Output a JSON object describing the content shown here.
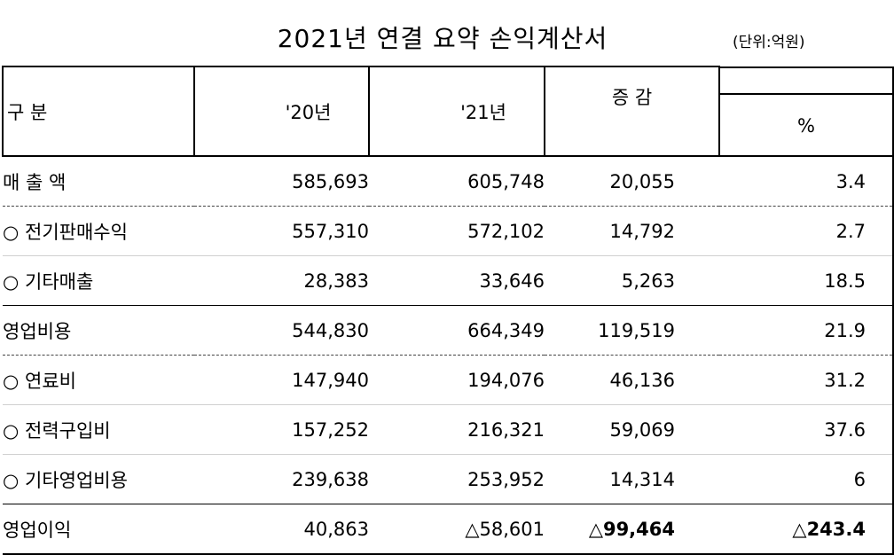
{
  "title": "2021년 연결 요약 손익계산서",
  "unit": "(단위:억원)",
  "header": {
    "label": "구    분",
    "col_2020": "'20년",
    "col_2021": "'21년",
    "col_diff": "증 감",
    "col_pct": "%"
  },
  "rows": [
    {
      "label": "매 출 액",
      "y2020": "585,693",
      "y2021": "605,748",
      "diff": "20,055",
      "pct": "3.4"
    },
    {
      "label": "○ 전기판매수익",
      "y2020": "557,310",
      "y2021": "572,102",
      "diff": "14,792",
      "pct": "2.7"
    },
    {
      "label": "○ 기타매출",
      "y2020": "28,383",
      "y2021": "33,646",
      "diff": "5,263",
      "pct": "18.5"
    },
    {
      "label": "영업비용",
      "y2020": "544,830",
      "y2021": "664,349",
      "diff": "119,519",
      "pct": "21.9"
    },
    {
      "label": "○ 연료비",
      "y2020": "147,940",
      "y2021": "194,076",
      "diff": "46,136",
      "pct": "31.2"
    },
    {
      "label": "○ 전력구입비",
      "y2020": "157,252",
      "y2021": "216,321",
      "diff": "59,069",
      "pct": "37.6"
    },
    {
      "label": "○ 기타영업비용",
      "y2020": "239,638",
      "y2021": "253,952",
      "diff": "14,314",
      "pct": "6"
    },
    {
      "label": "영업이익",
      "y2020": "40,863",
      "y2021": "△58,601",
      "diff": "△99,464",
      "pct": "△243.4"
    }
  ]
}
